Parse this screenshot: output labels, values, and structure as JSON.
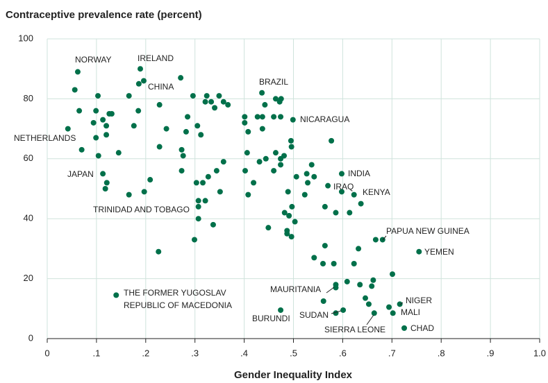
{
  "chart_data": {
    "type": "scatter",
    "title": "Contraceptive prevalence rate (percent)",
    "x_label": "Gender Inequality Index",
    "color": "#00704a",
    "grid": true,
    "xlim": [
      0,
      1.0
    ],
    "xticks": [
      0,
      {
        "value": 0.1,
        "label": ".1"
      },
      {
        "value": 0.2,
        "label": ".2"
      },
      {
        "value": 0.3,
        "label": ".3"
      },
      {
        "value": 0.4,
        "label": ".4"
      },
      {
        "value": 0.5,
        "label": ".5"
      },
      {
        "value": 0.6,
        "label": ".6"
      },
      {
        "value": 0.7,
        "label": ".7"
      },
      {
        "value": 0.8,
        "label": ".8"
      },
      {
        "value": 0.9,
        "label": ".9"
      },
      {
        "value": 1.0,
        "label": "1.0"
      }
    ],
    "ylim": [
      0,
      100
    ],
    "yticks": [
      0,
      20,
      40,
      60,
      80,
      100
    ],
    "x": [
      0.062,
      0.056,
      0.065,
      0.042,
      0.07,
      0.103,
      0.099,
      0.094,
      0.113,
      0.12,
      0.126,
      0.131,
      0.099,
      0.12,
      0.104,
      0.145,
      0.113,
      0.121,
      0.118,
      0.166,
      0.176,
      0.185,
      0.166,
      0.189,
      0.196,
      0.186,
      0.228,
      0.242,
      0.228,
      0.197,
      0.209,
      0.226,
      0.271,
      0.285,
      0.282,
      0.273,
      0.276,
      0.273,
      0.296,
      0.305,
      0.312,
      0.303,
      0.307,
      0.307,
      0.307,
      0.299,
      0.316,
      0.321,
      0.327,
      0.324,
      0.321,
      0.333,
      0.34,
      0.349,
      0.358,
      0.367,
      0.344,
      0.358,
      0.351,
      0.337,
      0.401,
      0.408,
      0.401,
      0.406,
      0.402,
      0.408,
      0.419,
      0.427,
      0.437,
      0.431,
      0.436,
      0.442,
      0.437,
      0.444,
      0.449,
      0.46,
      0.464,
      0.472,
      0.475,
      0.474,
      0.464,
      0.474,
      0.481,
      0.46,
      0.474,
      0.499,
      0.495,
      0.496,
      0.489,
      0.482,
      0.491,
      0.497,
      0.503,
      0.487,
      0.487,
      0.496,
      0.506,
      0.527,
      0.529,
      0.537,
      0.542,
      0.523,
      0.542,
      0.56,
      0.564,
      0.582,
      0.57,
      0.564,
      0.577,
      0.586,
      0.598,
      0.598,
      0.614,
      0.623,
      0.637,
      0.586,
      0.586,
      0.609,
      0.561,
      0.586,
      0.601,
      0.623,
      0.632,
      0.635,
      0.646,
      0.653,
      0.659,
      0.662,
      0.667,
      0.681,
      0.664,
      0.701,
      0.694,
      0.702,
      0.716,
      0.725,
      0.755,
      0.14,
      0.474
    ],
    "values": [
      89,
      83,
      76,
      70,
      63,
      81,
      76,
      72,
      73,
      71,
      75,
      75,
      67,
      68,
      61,
      62,
      55,
      52,
      50,
      81,
      71,
      76,
      48,
      90,
      86,
      85,
      78,
      70,
      64,
      49,
      53,
      29,
      87,
      74,
      69,
      63,
      61,
      56,
      81,
      71,
      68,
      52,
      46,
      44,
      40,
      33,
      52,
      46,
      54,
      81,
      79,
      79,
      77,
      81,
      79,
      78,
      56,
      59,
      49,
      38,
      74,
      69,
      72,
      62,
      56,
      48,
      52,
      74,
      74,
      59,
      82,
      78,
      70,
      60,
      37,
      74,
      80,
      79,
      80,
      74,
      62,
      60,
      61,
      56,
      58,
      73,
      66,
      64,
      49,
      42,
      41,
      44,
      39,
      36,
      35,
      34,
      54,
      55,
      52,
      58,
      54,
      48,
      27,
      25,
      31,
      25,
      51,
      44,
      66,
      42,
      55,
      49,
      42,
      48,
      45,
      18,
      17,
      19,
      12.5,
      8.5,
      9.5,
      25,
      30,
      18,
      13.5,
      11.5,
      17.5,
      19.5,
      33,
      33,
      8.5,
      21.5,
      10.5,
      8.5,
      11.5,
      3.5,
      29,
      14.5,
      9.5
    ],
    "annotations": [
      {
        "text": [
          "NORWAY"
        ]
      },
      {
        "text": [
          "IRELAND"
        ]
      },
      {
        "text": [
          "CHINA"
        ]
      },
      {
        "text": [
          "BRAZIL"
        ]
      },
      {
        "text": [
          "NETHERLANDS"
        ]
      },
      {
        "text": [
          "NICARAGUA"
        ]
      },
      {
        "text": [
          "JAPAN"
        ]
      },
      {
        "text": [
          "INDIA"
        ]
      },
      {
        "text": [
          "IRAQ"
        ]
      },
      {
        "text": [
          "KENYA"
        ]
      },
      {
        "text": [
          "TRINIDAD AND TOBAGO"
        ]
      },
      {
        "text": [
          "PAPUA NEW GUINEA"
        ]
      },
      {
        "text": [
          "YEMEN"
        ]
      },
      {
        "text": [
          "THE FORMER YUGOSLAV",
          "REPUBLIC OF MACEDONIA"
        ]
      },
      {
        "text": [
          "MAURITANIA"
        ]
      },
      {
        "text": [
          "BURUNDI"
        ]
      },
      {
        "text": [
          "SUDAN"
        ]
      },
      {
        "text": [
          "NIGER"
        ]
      },
      {
        "text": [
          "MALI"
        ]
      },
      {
        "text": [
          "SIERRA LEONE"
        ]
      },
      {
        "text": [
          "CHAD"
        ]
      }
    ]
  }
}
